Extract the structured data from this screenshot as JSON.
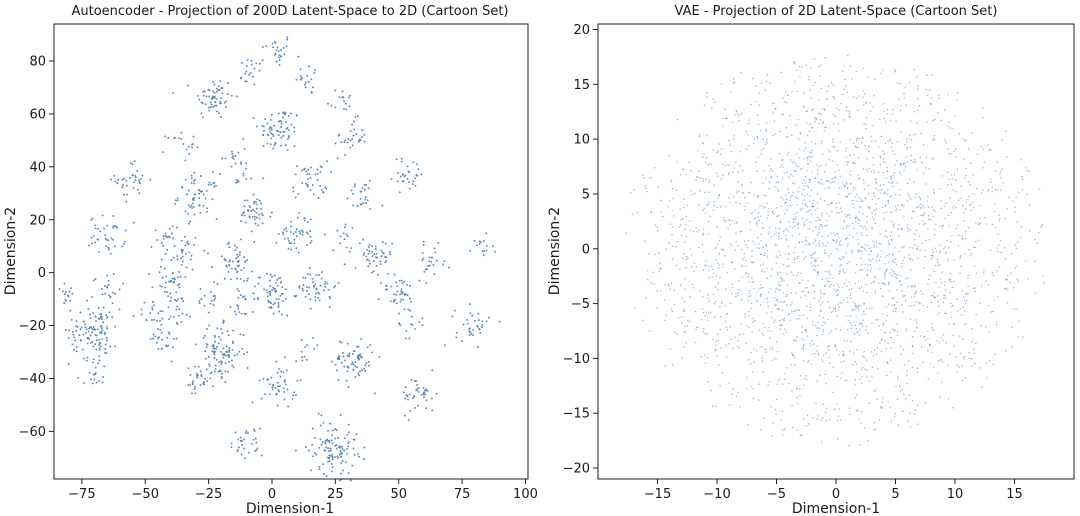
{
  "chart_data": [
    {
      "type": "scatter",
      "title": "Autoencoder - Projection of 200D Latent-Space to 2D (Cartoon Set)",
      "xlabel": "Dimension-1",
      "ylabel": "Dimension-2",
      "xlim": [
        -86,
        101
      ],
      "ylim": [
        -78,
        94
      ],
      "xticks": [
        -75,
        -50,
        -25,
        0,
        25,
        50,
        75,
        100
      ],
      "xtick_labels": [
        "−75",
        "−50",
        "−25",
        "0",
        "25",
        "50",
        "75",
        "100"
      ],
      "yticks": [
        -60,
        -40,
        -20,
        0,
        20,
        40,
        60,
        80
      ],
      "ytick_labels": [
        "−60",
        "−40",
        "−20",
        "0",
        "20",
        "40",
        "60",
        "80"
      ],
      "grid": false,
      "point_color": "#4a7fb0",
      "clusters": [
        {
          "x": 2,
          "y": 84,
          "n": 25
        },
        {
          "x": -8,
          "y": 76,
          "n": 20
        },
        {
          "x": 15,
          "y": 73,
          "n": 18
        },
        {
          "x": 27,
          "y": 65,
          "n": 15
        },
        {
          "x": -23,
          "y": 66,
          "n": 60
        },
        {
          "x": 3,
          "y": 54,
          "n": 70
        },
        {
          "x": 31,
          "y": 51,
          "n": 30
        },
        {
          "x": -36,
          "y": 48,
          "n": 18
        },
        {
          "x": -15,
          "y": 44,
          "n": 15
        },
        {
          "x": -55,
          "y": 35,
          "n": 35
        },
        {
          "x": 54,
          "y": 37,
          "n": 30
        },
        {
          "x": 15,
          "y": 35,
          "n": 40
        },
        {
          "x": -12,
          "y": 35,
          "n": 12
        },
        {
          "x": 35,
          "y": 29,
          "n": 25
        },
        {
          "x": -29,
          "y": 29,
          "n": 60
        },
        {
          "x": -7,
          "y": 22,
          "n": 45
        },
        {
          "x": -65,
          "y": 14,
          "n": 40
        },
        {
          "x": -42,
          "y": 15,
          "n": 15
        },
        {
          "x": 10,
          "y": 15,
          "n": 45
        },
        {
          "x": 30,
          "y": 14,
          "n": 15
        },
        {
          "x": -35,
          "y": 8,
          "n": 35
        },
        {
          "x": 40,
          "y": 5,
          "n": 45
        },
        {
          "x": -15,
          "y": 4,
          "n": 50
        },
        {
          "x": 63,
          "y": 4,
          "n": 25
        },
        {
          "x": 82,
          "y": 8,
          "n": 15
        },
        {
          "x": -40,
          "y": -4,
          "n": 35
        },
        {
          "x": -82,
          "y": -7,
          "n": 15
        },
        {
          "x": -65,
          "y": -6,
          "n": 20
        },
        {
          "x": 18,
          "y": -5,
          "n": 50
        },
        {
          "x": 0,
          "y": -8,
          "n": 70
        },
        {
          "x": -26,
          "y": -10,
          "n": 15
        },
        {
          "x": 50,
          "y": -8,
          "n": 40
        },
        {
          "x": -12,
          "y": -12,
          "n": 15
        },
        {
          "x": -37,
          "y": -14,
          "n": 20
        },
        {
          "x": -47,
          "y": -16,
          "n": 20
        },
        {
          "x": -70,
          "y": -22,
          "n": 120
        },
        {
          "x": 55,
          "y": -19,
          "n": 15
        },
        {
          "x": 79,
          "y": -20,
          "n": 35
        },
        {
          "x": -42,
          "y": -25,
          "n": 25
        },
        {
          "x": 14,
          "y": -27,
          "n": 12
        },
        {
          "x": -20,
          "y": -30,
          "n": 90
        },
        {
          "x": 32,
          "y": -33,
          "n": 70
        },
        {
          "x": -70,
          "y": -40,
          "n": 15
        },
        {
          "x": 3,
          "y": -42,
          "n": 45
        },
        {
          "x": -28,
          "y": -41,
          "n": 35
        },
        {
          "x": 58,
          "y": -46,
          "n": 40
        },
        {
          "x": -10,
          "y": -65,
          "n": 30
        },
        {
          "x": 24,
          "y": -66,
          "n": 110
        }
      ]
    },
    {
      "type": "scatter",
      "title": "VAE - Projection of 2D Latent-Space (Cartoon Set)",
      "xlabel": "Dimension-1",
      "ylabel": "Dimension-2",
      "xlim": [
        -20,
        20
      ],
      "ylim": [
        -21,
        20.5
      ],
      "xticks": [
        -15,
        -10,
        -5,
        0,
        5,
        10,
        15
      ],
      "xtick_labels": [
        "−15",
        "−10",
        "−5",
        "0",
        "5",
        "10",
        "15"
      ],
      "yticks": [
        -20,
        -15,
        -10,
        -5,
        0,
        5,
        10,
        15,
        20
      ],
      "ytick_labels": [
        "−20",
        "−15",
        "−10",
        "−5",
        "0",
        "5",
        "10",
        "15",
        "20"
      ],
      "grid": false,
      "point_color": "#4a7fb0",
      "distribution": {
        "shape": "disk",
        "center": [
          0,
          0
        ],
        "radius": 18,
        "n_points": 2600
      }
    }
  ]
}
